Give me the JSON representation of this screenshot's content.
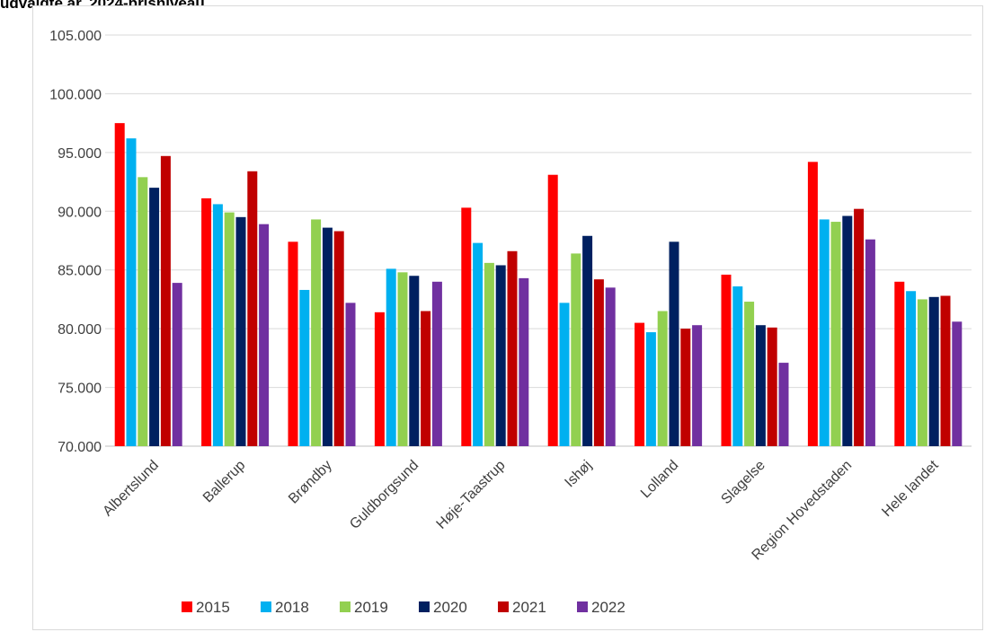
{
  "title_fragment": "udvalgte år, 2024-prisniveau",
  "colors": {
    "2015": "#ff0000",
    "2018": "#00b0f0",
    "2019": "#92d050",
    "2020": "#002060",
    "2021": "#c00000",
    "2022": "#7030a0",
    "grid": "#d9d9d9",
    "axis": "#bfbfbf"
  },
  "chart_data": {
    "type": "bar",
    "title": "",
    "xlabel": "",
    "ylabel": "",
    "ylim": [
      70000,
      105000
    ],
    "yticks": [
      70000,
      75000,
      80000,
      85000,
      90000,
      95000,
      100000,
      105000
    ],
    "ytick_labels": [
      "70.000",
      "75.000",
      "80.000",
      "85.000",
      "90.000",
      "95.000",
      "100.000",
      "105.000"
    ],
    "grid": true,
    "legend_position": "bottom",
    "categories": [
      "Albertslund",
      "Ballerup",
      "Brøndby",
      "Guldborgsund",
      "Høje-Taastrup",
      "Ishøj",
      "Lolland",
      "Slagelse",
      "Region Hovedstaden",
      "Hele landet"
    ],
    "series": [
      {
        "name": "2015",
        "values": [
          97500,
          91100,
          87400,
          81400,
          90300,
          93100,
          80500,
          84600,
          94200,
          84000
        ]
      },
      {
        "name": "2018",
        "values": [
          96200,
          90600,
          83300,
          85100,
          87300,
          82200,
          79700,
          83600,
          89300,
          83200
        ]
      },
      {
        "name": "2019",
        "values": [
          92900,
          89900,
          89300,
          84800,
          85600,
          86400,
          81500,
          82300,
          89100,
          82500
        ]
      },
      {
        "name": "2020",
        "values": [
          92000,
          89500,
          88600,
          84500,
          85400,
          87900,
          87400,
          80300,
          89600,
          82700
        ]
      },
      {
        "name": "2021",
        "values": [
          94700,
          93400,
          88300,
          81500,
          86600,
          84200,
          80000,
          80100,
          90200,
          82800
        ]
      },
      {
        "name": "2022",
        "values": [
          83900,
          88900,
          82200,
          84000,
          84300,
          83500,
          80300,
          77100,
          87600,
          80600
        ]
      }
    ]
  }
}
